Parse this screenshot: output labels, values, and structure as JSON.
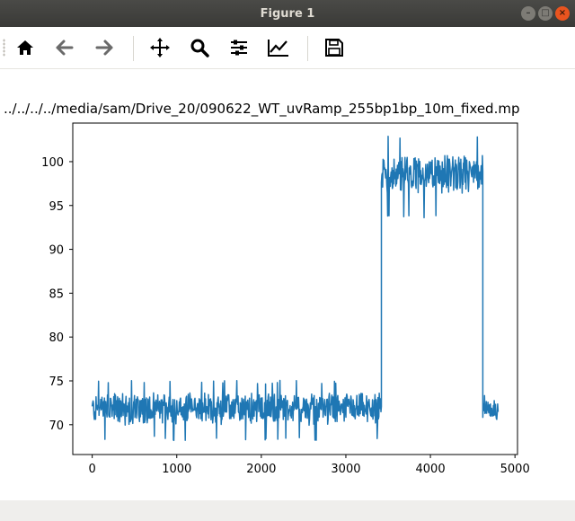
{
  "window": {
    "title": "Figure 1"
  },
  "toolbar": {
    "tools": [
      "home-icon",
      "back-icon",
      "forward-icon",
      "pan-icon",
      "zoom-icon",
      "configure-subplots-icon",
      "edit-axis-icon",
      "save-icon"
    ]
  },
  "chart_data": {
    "type": "line",
    "title": "../../../../media/sam/Drive_20/090622_WT_uvRamp_255bp1bp_10m_fixed.mp",
    "xlabel": "",
    "ylabel": "",
    "xlim": [
      -230,
      5030
    ],
    "ylim": [
      66.6,
      104.4
    ],
    "xticks": [
      0,
      1000,
      2000,
      3000,
      4000,
      5000
    ],
    "yticks": [
      70,
      75,
      80,
      85,
      90,
      95,
      100
    ],
    "series": [
      {
        "color": "#1f77b4",
        "segments": [
          {
            "x_start": 0,
            "x_end": 3420,
            "mean": 71.8,
            "noise": 1.5,
            "min": 68.2,
            "max": 75.1
          },
          {
            "x_start": 3420,
            "x_end": 4620,
            "mean": 98.5,
            "noise": 1.8,
            "min": 93.5,
            "max": 103.1
          },
          {
            "x_start": 4620,
            "x_end": 4800,
            "mean": 71.8,
            "noise": 1.0,
            "min": 68.8,
            "max": 73.8
          }
        ]
      }
    ],
    "grid": false,
    "legend": "none"
  },
  "colors": {
    "line": "#1f77b4",
    "titlebar": "#3c3b37",
    "close": "#e9541f"
  }
}
